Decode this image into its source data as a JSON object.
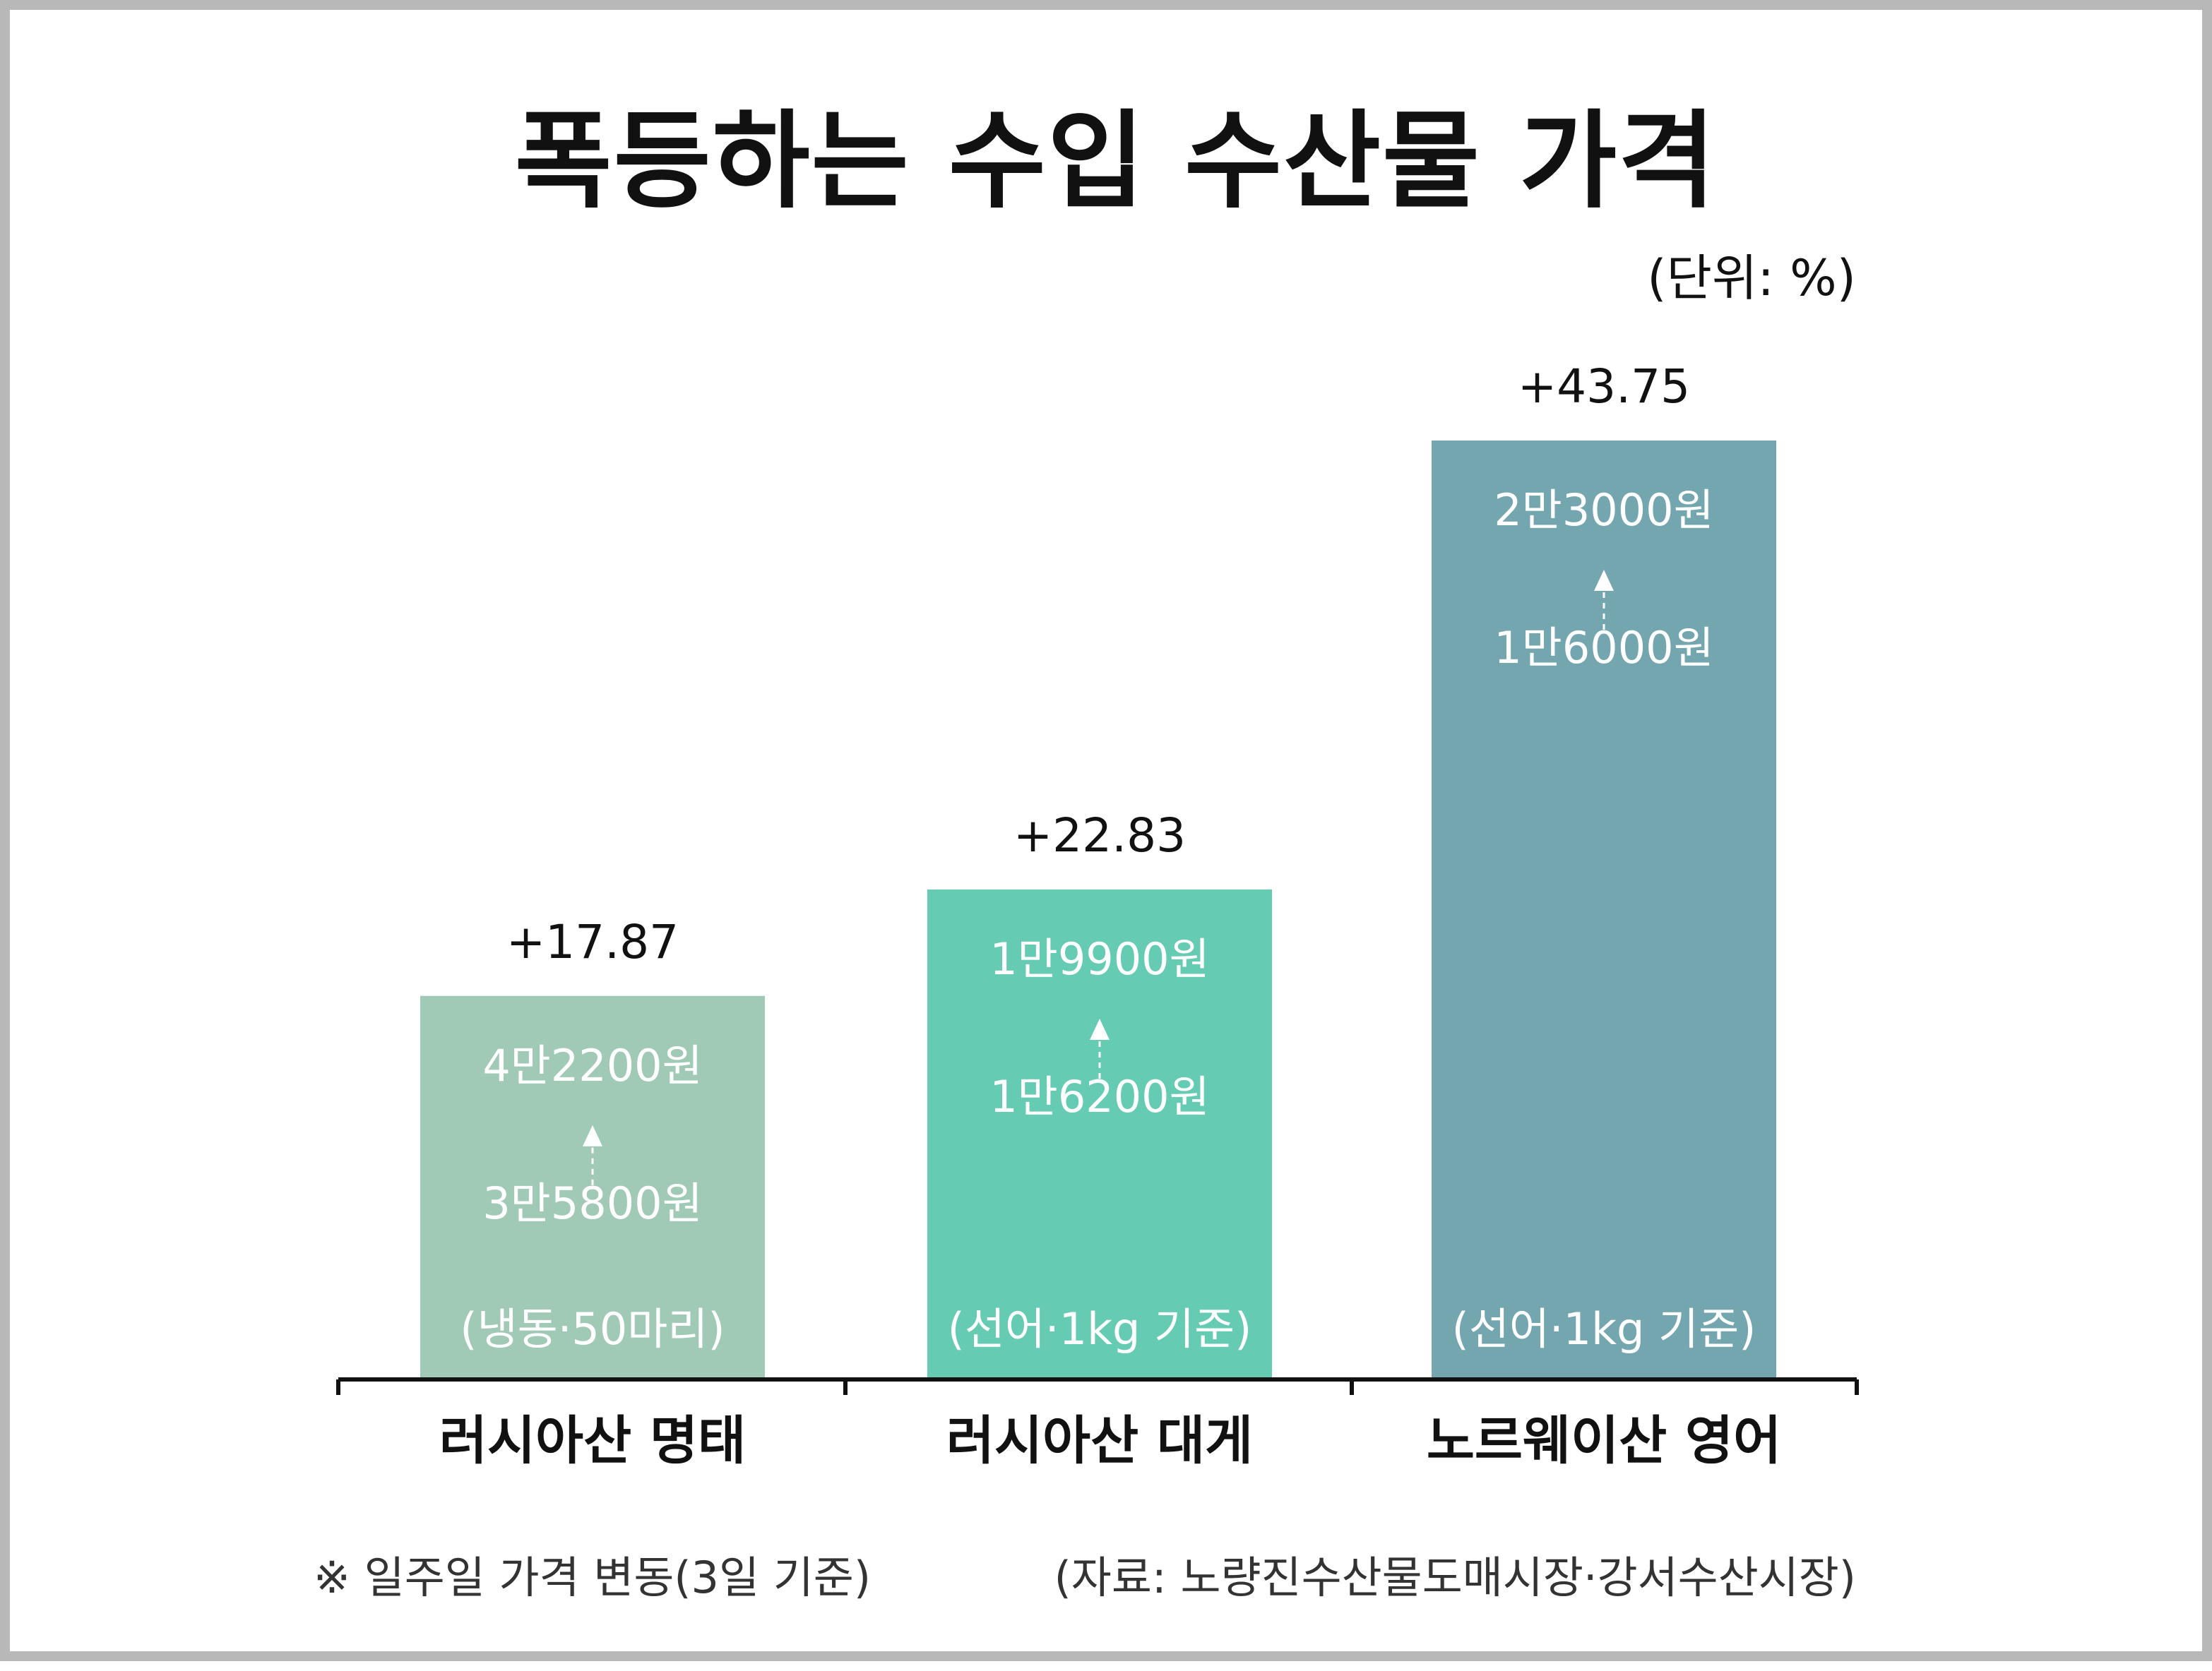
{
  "title": "폭등하는 수입 수산물 가격",
  "unit_label": "(단위: %)",
  "footnote": "※ 일주일 가격 변동(3일 기준)",
  "source": "(자료: 노량진수산물도매시장·강서수산시장)",
  "chart_data": {
    "type": "bar",
    "title": "폭등하는 수입 수산물 가격",
    "ylabel": "",
    "xlabel": "",
    "unit": "%",
    "ylim": [
      0,
      50
    ],
    "grid": false,
    "categories": [
      "러시아산 명태",
      "러시아산 대게",
      "노르웨이산 영어"
    ],
    "values": [
      17.87,
      22.83,
      43.75
    ],
    "value_labels": [
      "+17.87",
      "+22.83",
      "+43.75"
    ],
    "price_after": [
      "4만2200원",
      "1만9900원",
      "2만3000원"
    ],
    "price_before": [
      "3만5800원",
      "1만6200원",
      "1만6000원"
    ],
    "basis": [
      "(냉동·50마리)",
      "(선어·1kg 기준)",
      "(선어·1kg 기준)"
    ],
    "colors": [
      "#a0cab5",
      "#66cbb3",
      "#73a6ae"
    ]
  }
}
